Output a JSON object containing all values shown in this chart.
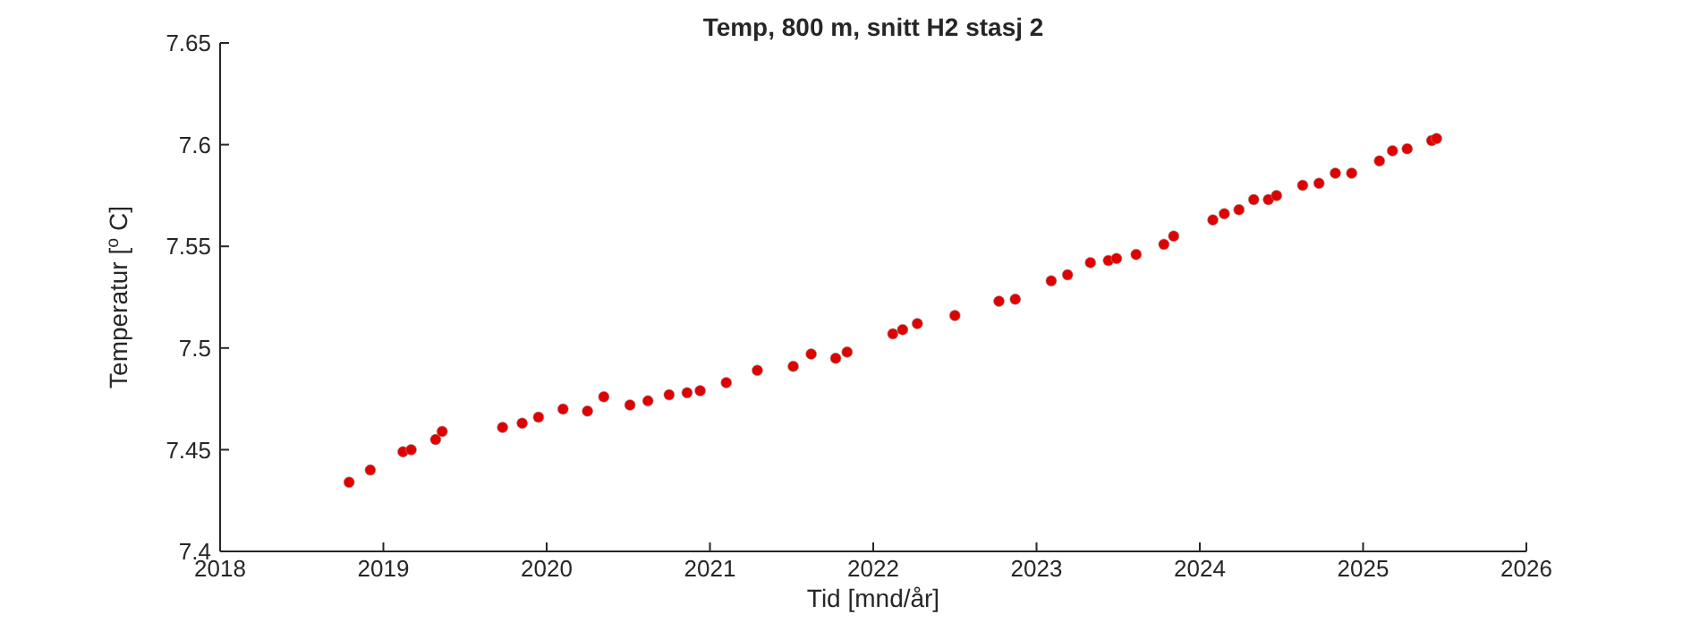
{
  "chart_data": {
    "type": "scatter",
    "title": "Temp, 800 m, snitt H2 stasj 2",
    "xlabel": "Tid [mnd/år]",
    "ylabel": "Temperatur [$^{o}$ C]",
    "xlim": [
      2018,
      2026
    ],
    "xticks": [
      2018,
      2019,
      2020,
      2021,
      2022,
      2023,
      2024,
      2025,
      2026
    ],
    "ylim": [
      7.4,
      7.65
    ],
    "yticks": [
      7.4,
      7.45,
      7.5,
      7.55,
      7.6,
      7.65
    ],
    "grid": false,
    "legend": false,
    "marker": "circle",
    "series": [
      {
        "color": "#e00000",
        "x": [
          2018.79,
          2018.92,
          2019.12,
          2019.17,
          2019.32,
          2019.36,
          2019.73,
          2019.85,
          2019.95,
          2020.1,
          2020.25,
          2020.35,
          2020.51,
          2020.62,
          2020.75,
          2020.86,
          2020.94,
          2021.1,
          2021.29,
          2021.51,
          2021.62,
          2021.77,
          2021.84,
          2022.12,
          2022.18,
          2022.27,
          2022.5,
          2022.77,
          2022.87,
          2023.09,
          2023.19,
          2023.33,
          2023.44,
          2023.49,
          2023.61,
          2023.78,
          2023.84,
          2024.08,
          2024.15,
          2024.24,
          2024.33,
          2024.42,
          2024.47,
          2024.63,
          2024.73,
          2024.83,
          2024.93,
          2025.1,
          2025.18,
          2025.27,
          2025.42,
          2025.45
        ],
        "values": [
          7.434,
          7.44,
          7.449,
          7.45,
          7.455,
          7.459,
          7.461,
          7.463,
          7.466,
          7.47,
          7.469,
          7.476,
          7.472,
          7.474,
          7.477,
          7.478,
          7.479,
          7.483,
          7.489,
          7.491,
          7.497,
          7.495,
          7.498,
          7.507,
          7.509,
          7.512,
          7.516,
          7.523,
          7.524,
          7.533,
          7.536,
          7.542,
          7.543,
          7.544,
          7.546,
          7.551,
          7.555,
          7.563,
          7.566,
          7.568,
          7.573,
          7.573,
          7.575,
          7.58,
          7.581,
          7.586,
          7.586,
          7.592,
          7.597,
          7.598,
          7.602,
          7.603
        ]
      }
    ]
  }
}
